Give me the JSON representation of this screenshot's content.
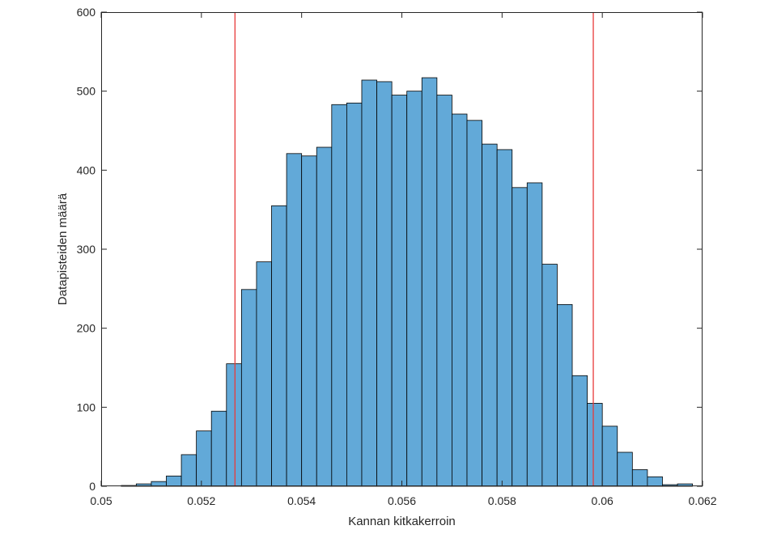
{
  "chart_data": {
    "type": "histogram",
    "title": "",
    "xlabel": "Kannan kitkakerroin",
    "ylabel": "Datapisteiden määrä",
    "xlim": [
      0.05,
      0.062
    ],
    "ylim": [
      0,
      600
    ],
    "xticks": [
      0.05,
      0.052,
      0.054,
      0.056,
      0.058,
      0.06,
      0.062
    ],
    "xtick_labels": [
      "0.05",
      "0.052",
      "0.054",
      "0.056",
      "0.058",
      "0.06",
      "0.062"
    ],
    "yticks": [
      0,
      100,
      200,
      300,
      400,
      500,
      600
    ],
    "ytick_labels": [
      "0",
      "100",
      "200",
      "300",
      "400",
      "500",
      "600"
    ],
    "bin_width": 0.0003,
    "bin_edges_start": 0.0504,
    "counts": [
      1,
      3,
      6,
      13,
      40,
      70,
      95,
      155,
      249,
      284,
      355,
      421,
      418,
      429,
      483,
      485,
      514,
      512,
      495,
      500,
      517,
      495,
      471,
      463,
      433,
      426,
      378,
      384,
      281,
      230,
      140,
      105,
      76,
      43,
      21,
      12,
      2,
      3
    ],
    "bar_color": "#62a9d8",
    "bar_edge_color": "#000000",
    "reference_lines": [
      {
        "x": 0.05267,
        "color": "#e83a3a"
      },
      {
        "x": 0.05982,
        "color": "#e83a3a"
      }
    ],
    "grid": false,
    "legend": "none"
  }
}
